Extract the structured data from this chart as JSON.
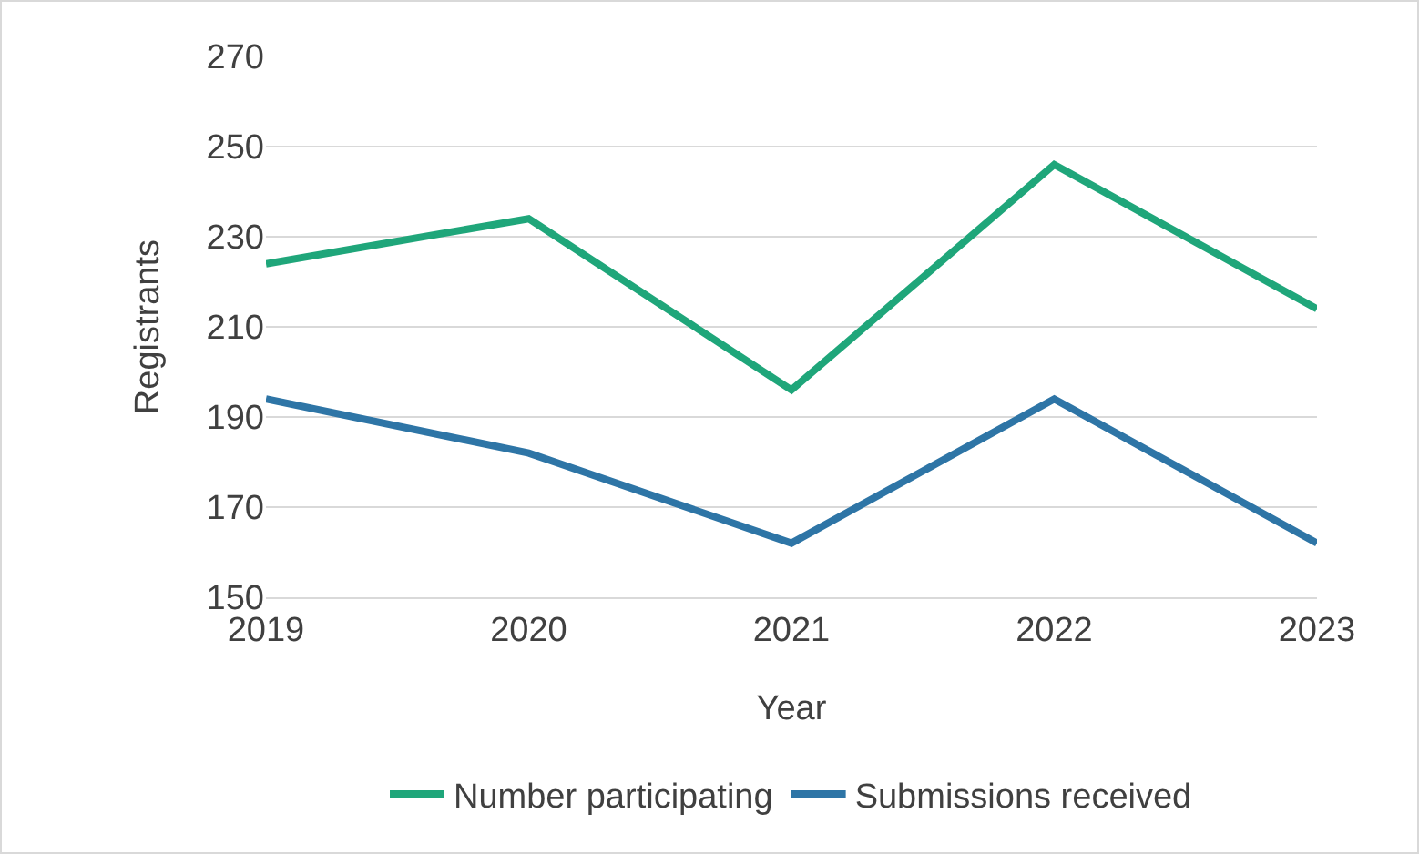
{
  "chart_data": {
    "type": "line",
    "xlabel": "Year",
    "ylabel": "Registrants",
    "categories": [
      "2019",
      "2020",
      "2021",
      "2022",
      "2023"
    ],
    "series": [
      {
        "name": "Number participating",
        "color": "#1fa67a",
        "values": [
          224,
          234,
          196,
          246,
          214
        ]
      },
      {
        "name": "Submissions received",
        "color": "#2e75a6",
        "values": [
          194,
          182,
          162,
          194,
          162
        ]
      }
    ],
    "ylim": [
      150,
      270
    ],
    "yticks": [
      150,
      170,
      190,
      210,
      230,
      250,
      270
    ],
    "grid": "y",
    "legend": "bottom",
    "marker": "none",
    "line_style": "solid"
  }
}
